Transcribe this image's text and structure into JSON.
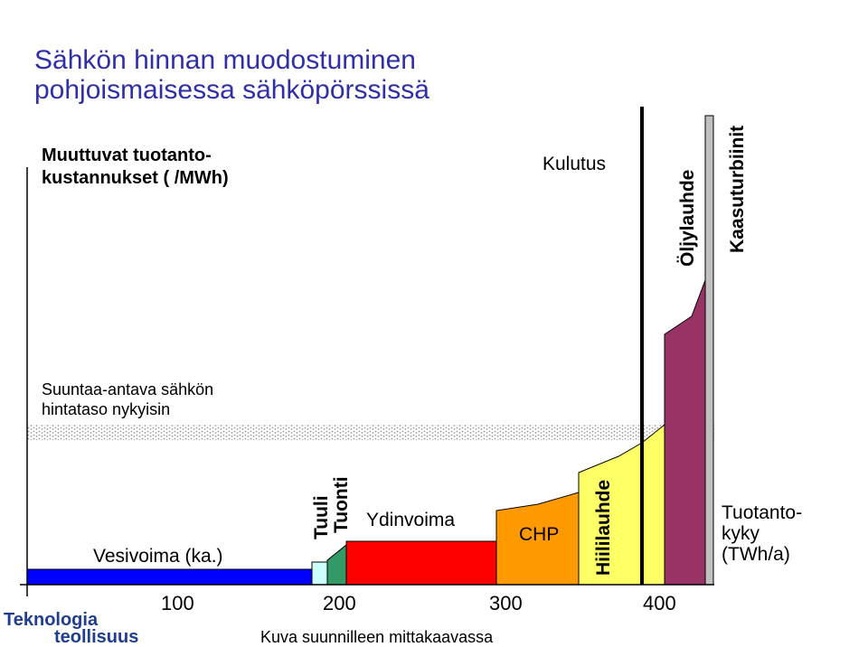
{
  "title": {
    "line1": "Sähkön hinnan muodostuminen",
    "line2": "pohjoismaisessa sähköpörssissä"
  },
  "y_axis_label": {
    "line1": "Muuttuvat tuotanto-",
    "line2": "kustannukset ( /MWh)"
  },
  "price_level": {
    "line1": "Suuntaa-antava sähkön",
    "line2": "hintataso nykyisin"
  },
  "demand_label": "Kulutus",
  "x_axis_label": {
    "line1": "Tuotanto-",
    "line2": "kyky",
    "line3": "(TWh/a)"
  },
  "x_ticks": [
    "100",
    "200",
    "300",
    "400"
  ],
  "note": "Kuva suunnilleen mittakaavassa",
  "logo": {
    "line1": "Teknologia",
    "line2": "teollisuus"
  },
  "segments": [
    {
      "id": "vesivoima",
      "label": "Vesivoima (ka.)",
      "color": "#0000ff"
    },
    {
      "id": "tuuli",
      "label": "Tuuli",
      "color": "#ccffff"
    },
    {
      "id": "tuonti",
      "label": "Tuonti",
      "color": "#339966"
    },
    {
      "id": "ydinvoima",
      "label": "Ydinvoima",
      "color": "#ff0000"
    },
    {
      "id": "chp",
      "label": "CHP",
      "color": "#ff9900"
    },
    {
      "id": "hiililauhde",
      "label": "Hiililauhde",
      "color": "#ffff66"
    },
    {
      "id": "oljylauhde",
      "label": "Öljylauhde",
      "color": "#993366"
    },
    {
      "id": "kaasuturbiinit",
      "label": "Kaasuturbiinit",
      "color": "#c0c0c0"
    }
  ]
}
